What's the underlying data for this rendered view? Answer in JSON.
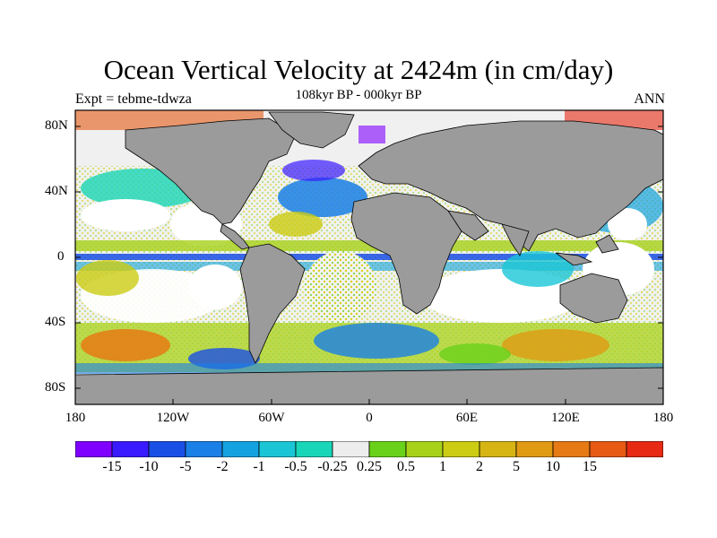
{
  "title": "Ocean Vertical Velocity at 2424m (in cm/day)",
  "subtitle": "108kyr BP - 000kyr BP",
  "left_label": "Expt = tebme-tdwza",
  "right_label": "ANN",
  "map": {
    "projection": "cylindrical equidistant",
    "land_color": "#9b9b9b",
    "missing_color": "#ffffff",
    "lat_labels": [
      "80N",
      "40N",
      "0",
      "40S",
      "80S"
    ],
    "lon_labels": [
      "180",
      "120W",
      "60W",
      "0",
      "60E",
      "120E",
      "180"
    ]
  },
  "colorbar": {
    "colors": [
      "#7f00ff",
      "#3a1aff",
      "#1a4fe6",
      "#1a7fe6",
      "#14a3e0",
      "#1ac6d6",
      "#1ad6b8",
      "#ededed",
      "#6ad11a",
      "#a8d11a",
      "#cccc14",
      "#d6b414",
      "#e09a14",
      "#e67a14",
      "#e65a14",
      "#e62a14"
    ],
    "labels": [
      "-15",
      "-10",
      "-5",
      "-2",
      "-1",
      "-0.5",
      "-0.25",
      "0.25",
      "0.5",
      "1",
      "2",
      "5",
      "10",
      "15"
    ]
  }
}
